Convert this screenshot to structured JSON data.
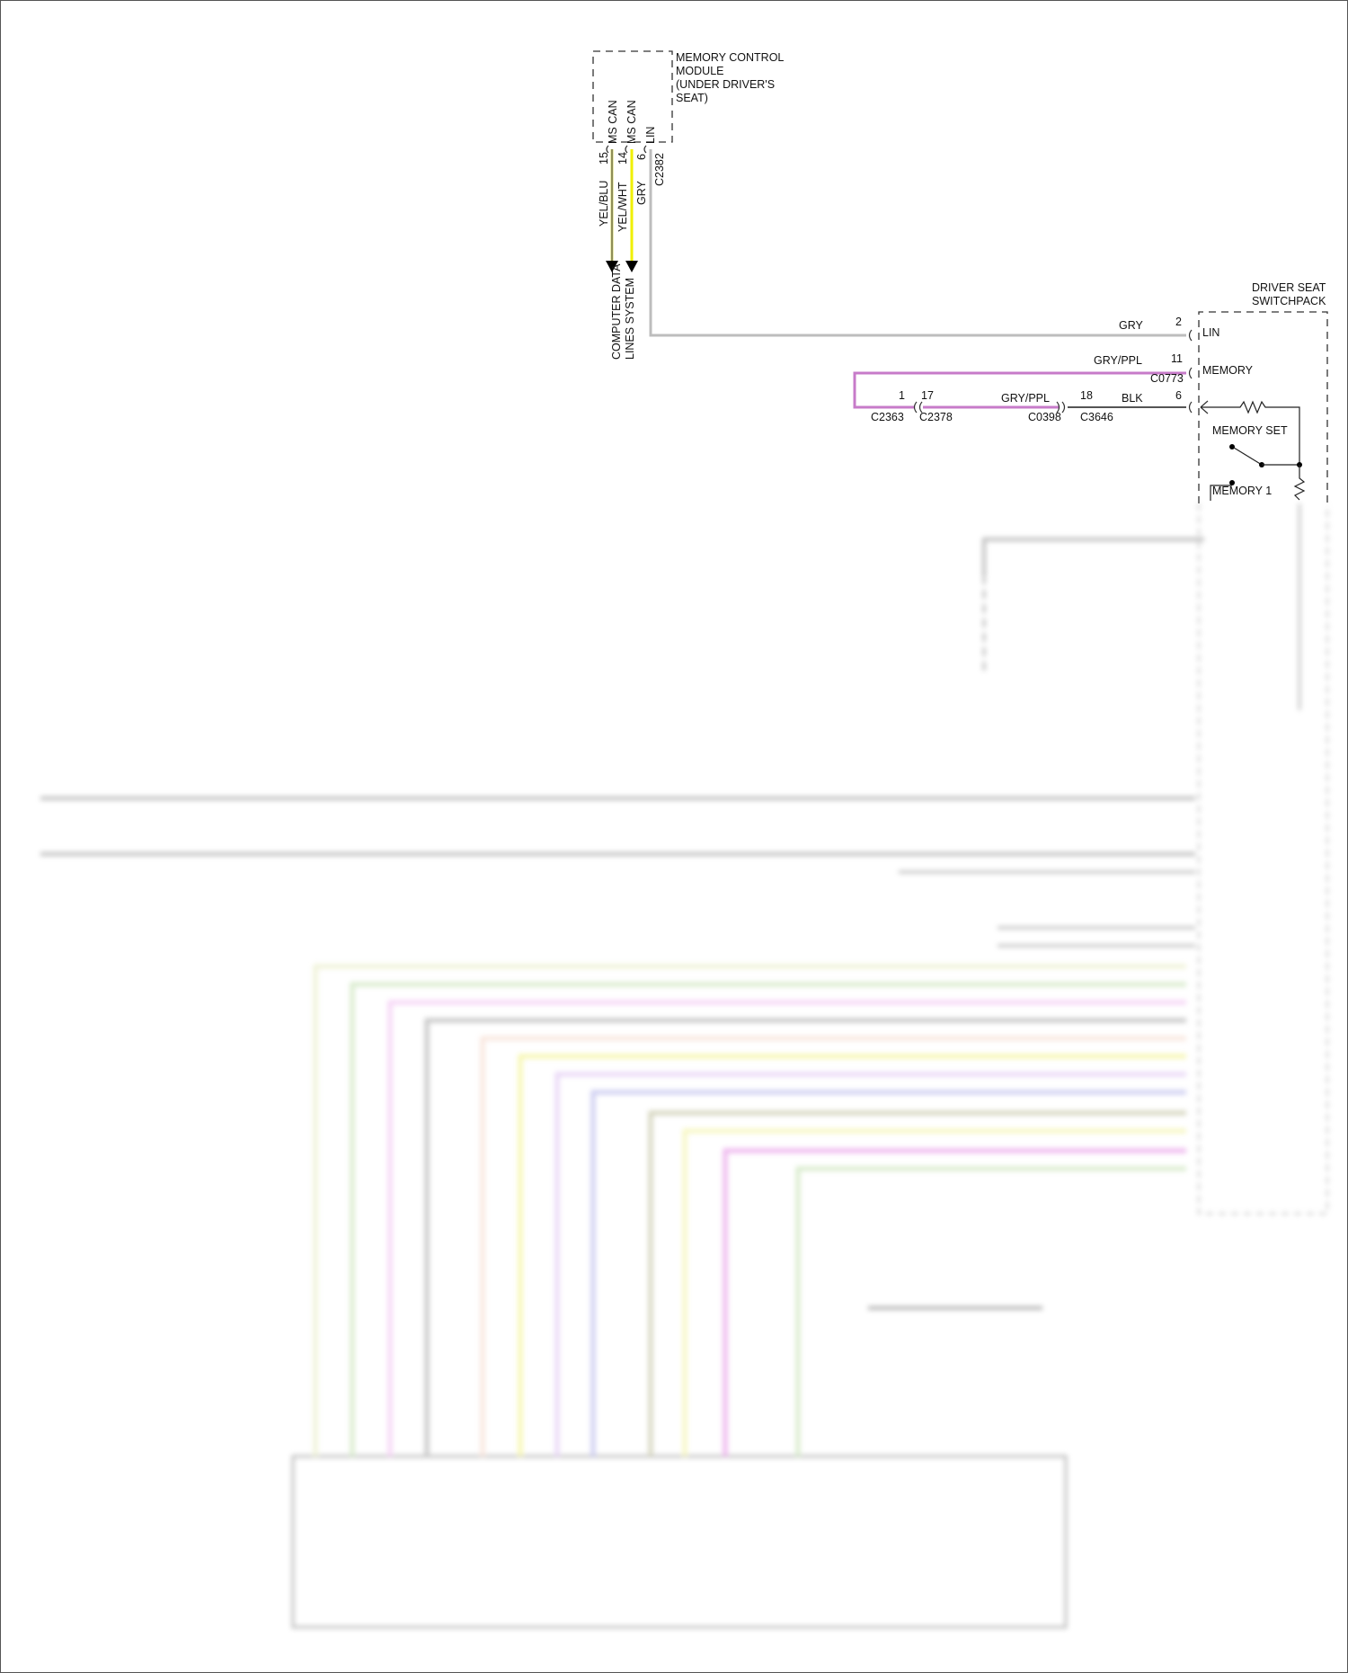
{
  "memory_module": {
    "title_lines": [
      "MEMORY CONTROL",
      "MODULE",
      "(UNDER DRIVER'S",
      "SEAT)"
    ],
    "pins": [
      {
        "name": "MS CAN",
        "number": "15",
        "wire": "YEL/BLU",
        "color": "#d9d96a"
      },
      {
        "name": "MS CAN",
        "number": "14",
        "wire": "YEL/WHT",
        "color": "#f0f000"
      },
      {
        "name": "LIN",
        "number": "6",
        "wire": "GRY",
        "color": "#bdbdbd"
      }
    ],
    "connector": "C2382",
    "destination_lines": [
      "COMPUTER DATA",
      "LINES SYSTEM"
    ]
  },
  "switchpack": {
    "title_lines": [
      "DRIVER SEAT",
      "SWITCHPACK"
    ],
    "pins": [
      {
        "name": "LIN",
        "number": "2",
        "wire": "GRY"
      },
      {
        "name": "MEMORY",
        "number": "11",
        "wire": "GRY/PPL",
        "connector": "C0773"
      },
      {
        "number": "6",
        "wire": "BLK"
      }
    ],
    "switches": [
      "MEMORY SET",
      "MEMORY 1"
    ]
  },
  "memory_circuit": {
    "pin_1": "1",
    "pin_17": "17",
    "pin_18": "18",
    "wire_a": "GRY/PPL",
    "wire_b": "BLK",
    "connectors": [
      "C2363",
      "C2378",
      "C0398",
      "C3646"
    ]
  },
  "colors": {
    "gry": "#bdbdbd",
    "gry_ppl": "#c77bc9",
    "blk": "#555555",
    "lower_wires": [
      "#e3e8b8",
      "#b9dca4",
      "#efb3ef",
      "#9a9a9a",
      "#f4d2c2",
      "#f0f070",
      "#d8b8f0",
      "#a6a6e6",
      "#b3b38a",
      "#f0f090",
      "#e07ae0",
      "#b9dca4"
    ]
  }
}
